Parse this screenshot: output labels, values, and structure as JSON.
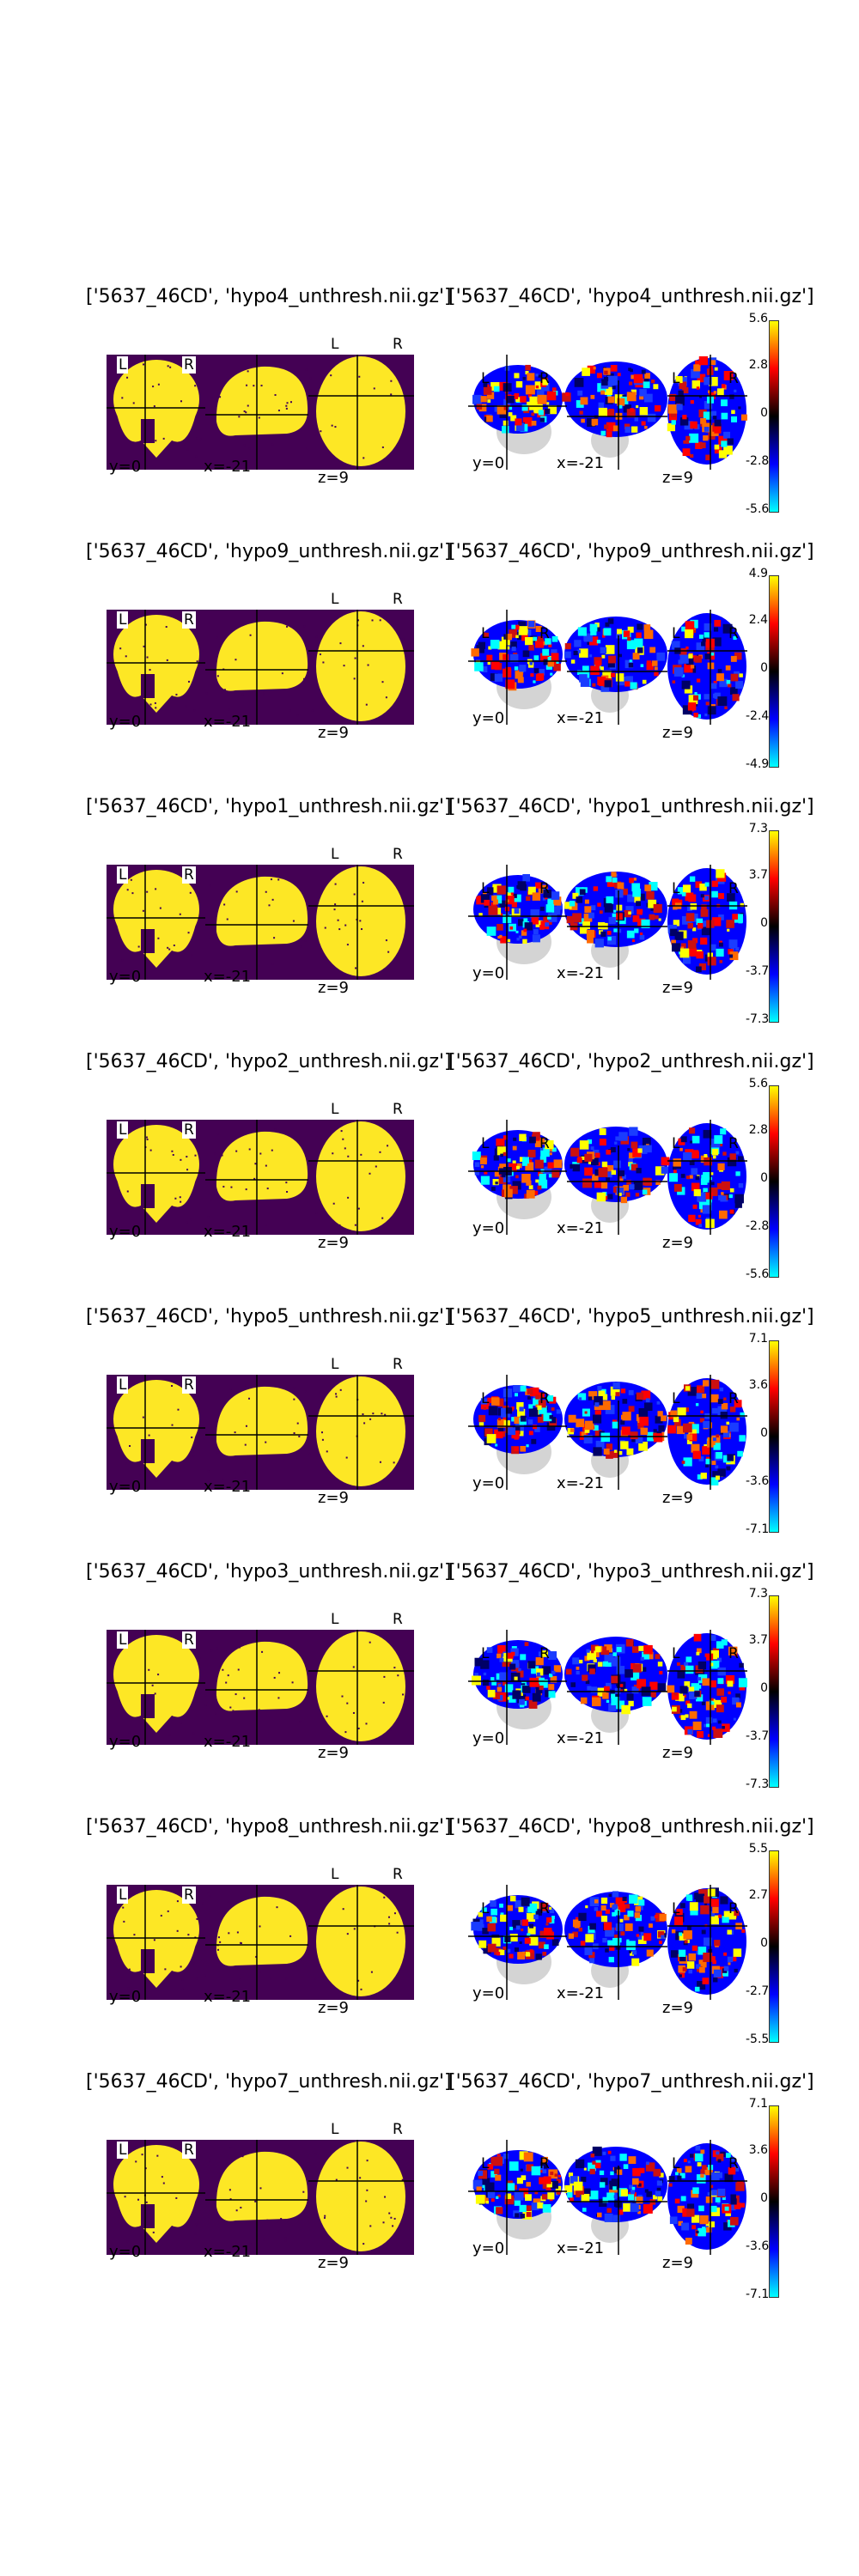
{
  "figure": {
    "colorbar_colors": [
      "#00ffff",
      "#0000ff",
      "#000000",
      "#ff0000",
      "#ffff00"
    ],
    "mask_colors": {
      "background": "#440154",
      "brain": "#fde725"
    },
    "rows": [
      {
        "left_title": "['5637_46CD', 'hypo4_unthresh.nii.gz']",
        "right_title": "['5637_46CD', 'hypo4_unthresh.nii.gz']",
        "cbar_ticks": [
          "5.6",
          "2.8",
          "0",
          "-2.8",
          "-5.6"
        ],
        "cut_y": "y=0",
        "cut_x": "x=-21",
        "cut_z": "z=9"
      },
      {
        "left_title": "['5637_46CD', 'hypo9_unthresh.nii.gz']",
        "right_title": "['5637_46CD', 'hypo9_unthresh.nii.gz']",
        "cbar_ticks": [
          "4.9",
          "2.4",
          "0",
          "-2.4",
          "-4.9"
        ],
        "cut_y": "y=0",
        "cut_x": "x=-21",
        "cut_z": "z=9"
      },
      {
        "left_title": "['5637_46CD', 'hypo1_unthresh.nii.gz']",
        "right_title": "['5637_46CD', 'hypo1_unthresh.nii.gz']",
        "cbar_ticks": [
          "7.3",
          "3.7",
          "0",
          "-3.7",
          "-7.3"
        ],
        "cut_y": "y=0",
        "cut_x": "x=-21",
        "cut_z": "z=9"
      },
      {
        "left_title": "['5637_46CD', 'hypo2_unthresh.nii.gz']",
        "right_title": "['5637_46CD', 'hypo2_unthresh.nii.gz']",
        "cbar_ticks": [
          "5.6",
          "2.8",
          "0",
          "-2.8",
          "-5.6"
        ],
        "cut_y": "y=0",
        "cut_x": "x=-21",
        "cut_z": "z=9"
      },
      {
        "left_title": "['5637_46CD', 'hypo5_unthresh.nii.gz']",
        "right_title": "['5637_46CD', 'hypo5_unthresh.nii.gz']",
        "cbar_ticks": [
          "7.1",
          "3.6",
          "0",
          "-3.6",
          "-7.1"
        ],
        "cut_y": "y=0",
        "cut_x": "x=-21",
        "cut_z": "z=9"
      },
      {
        "left_title": "['5637_46CD', 'hypo3_unthresh.nii.gz']",
        "right_title": "['5637_46CD', 'hypo3_unthresh.nii.gz']",
        "cbar_ticks": [
          "7.3",
          "3.7",
          "0",
          "-3.7",
          "-7.3"
        ],
        "cut_y": "y=0",
        "cut_x": "x=-21",
        "cut_z": "z=9"
      },
      {
        "left_title": "['5637_46CD', 'hypo8_unthresh.nii.gz']",
        "right_title": "['5637_46CD', 'hypo8_unthresh.nii.gz']",
        "cbar_ticks": [
          "5.5",
          "2.7",
          "0",
          "-2.7",
          "-5.5"
        ],
        "cut_y": "y=0",
        "cut_x": "x=-21",
        "cut_z": "z=9"
      },
      {
        "left_title": "['5637_46CD', 'hypo7_unthresh.nii.gz']",
        "right_title": "['5637_46CD', 'hypo7_unthresh.nii.gz']",
        "cbar_ticks": [
          "7.1",
          "3.6",
          "0",
          "-3.6",
          "-7.1"
        ],
        "cut_y": "y=0",
        "cut_x": "x=-21",
        "cut_z": "z=9"
      }
    ],
    "orientation": {
      "left": "L",
      "right": "R"
    }
  }
}
